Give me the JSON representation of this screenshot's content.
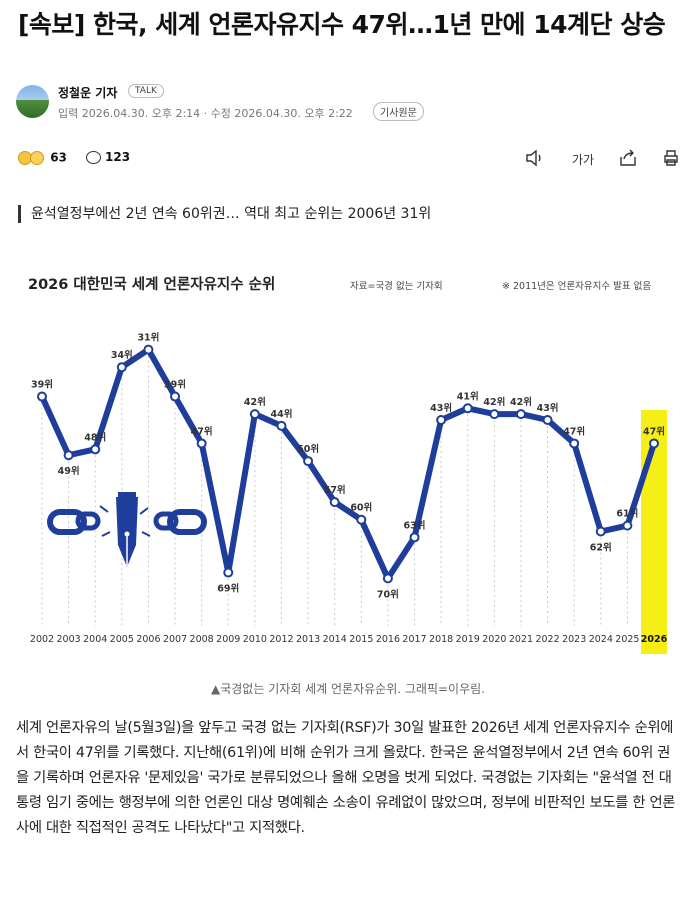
{
  "article": {
    "headline": "[속보] 한국, 세계 언론자유지수 47위…1년 만에 14계단 상승",
    "reporter": "정철운 기자",
    "talk_label": "TALK",
    "dates": "입력 2026.04.30. 오후 2:14 · 수정 2026.04.30. 오후 2:22",
    "original_label": "기사원문",
    "reaction_count": "63",
    "comment_count": "123",
    "font_size_label": "가가",
    "subheading": "윤석열정부에선 2년 연속 60위권… 역대 최고 순위는 2006년 31위",
    "caption": "▲국경없는 기자회 세계 언론자유순위. 그래픽=이우림.",
    "body": "세계 언론자유의 날(5월3일)을 앞두고 국경 없는 기자회(RSF)가 30일 발표한 2026년 세계 언론자유지수 순위에서 한국이 47위를 기록했다. 지난해(61위)에 비해 순위가 크게 올랐다. 한국은 윤석열정부에서 2년 연속 60위 권을 기록하며 언론자유 '문제있음' 국가로 분류되었으나 올해 오명을 벗게 되었다. 국경없는 기자회는 \"윤석열 전 대통령 임기 중에는 행정부에 의한 언론인 대상 명예훼손 소송이 유례없이 많았으며, 정부에 비판적인 보도를 한 언론사에 대한 직접적인 공격도 나타났다\"고 지적했다."
  },
  "icons": {
    "reaction": "emoji-reaction-icon",
    "comment": "comment-bubble-icon",
    "audio": "speaker-icon",
    "font": "font-size-icon",
    "share": "share-icon",
    "print": "print-icon",
    "decoration": "broken-chain-pen-icon"
  },
  "colors": {
    "line": "#1f3d9a",
    "highlight": "#f6ef16",
    "text": "#222222"
  },
  "chart_data": {
    "type": "line",
    "title": "2026 대한민국 세계 언론자유지수 순위",
    "source": "자료=국경 없는 기자회",
    "note": "※ 2011년은 언론자유지수 발표 없음",
    "x": [
      "2002",
      "2003",
      "2004",
      "2005",
      "2006",
      "2007",
      "2008",
      "2009",
      "2010",
      "2012",
      "2013",
      "2014",
      "2015",
      "2016",
      "2017",
      "2018",
      "2019",
      "2020",
      "2021",
      "2022",
      "2023",
      "2024",
      "2025",
      "2026"
    ],
    "series": [
      {
        "values": [
          39,
          49,
          48,
          34,
          31,
          39,
          47,
          69,
          42,
          44,
          50,
          57,
          60,
          70,
          63,
          43,
          41,
          42,
          42,
          43,
          47,
          62,
          61,
          47
        ],
        "labels": [
          "39위",
          "49위",
          "48위",
          "34위",
          "31위",
          "39위",
          "47위",
          "69위",
          "42위",
          "44위",
          "50위",
          "57위",
          "60위",
          "70위",
          "63위",
          "43위",
          "41위",
          "42위",
          "42위",
          "43위",
          "47위",
          "62위",
          "61위",
          "47위"
        ]
      }
    ],
    "y_inverted": true,
    "ylim": [
      28,
      73
    ],
    "highlight": "2026",
    "grid": "vertical dotted"
  }
}
